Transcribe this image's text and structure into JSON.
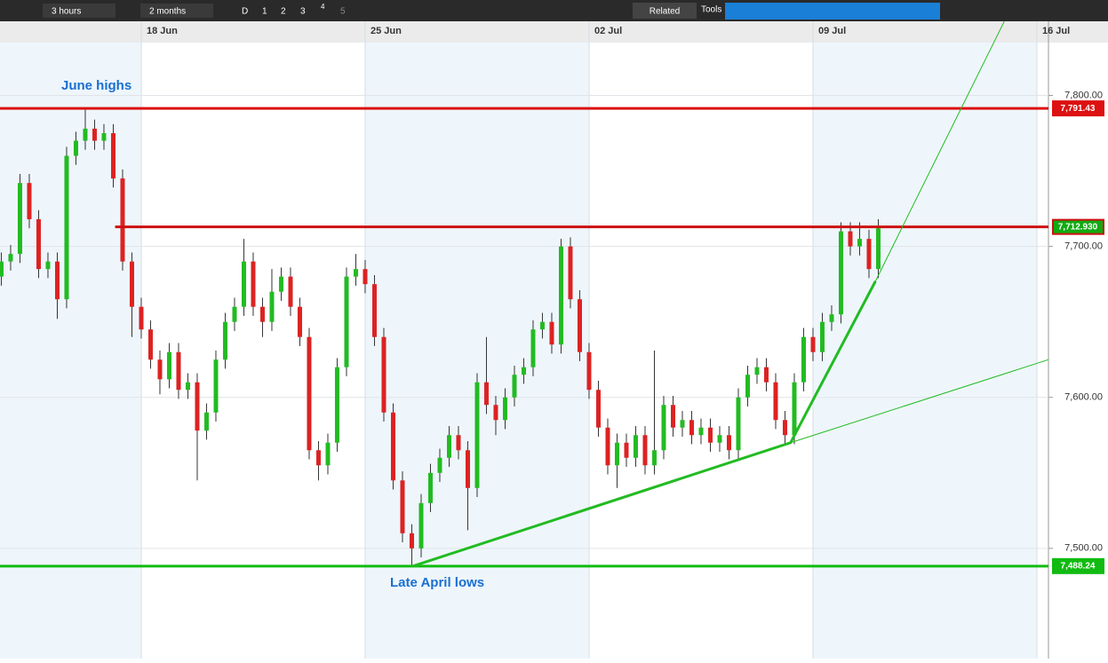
{
  "toolbar": {
    "interval": "3 hours",
    "range": "2 months",
    "buttons": [
      "D",
      "1",
      "2",
      "3",
      "4",
      "5"
    ],
    "related": "Related",
    "tools": "Tools"
  },
  "chart_data": {
    "type": "candlestick",
    "xlim": [
      -0.14,
      112.24
    ],
    "xticks": [
      {
        "value": 15,
        "label": "18 Jun"
      },
      {
        "value": 39,
        "label": "25 Jun"
      },
      {
        "value": 63,
        "label": "02 Jul"
      },
      {
        "value": 87,
        "label": "09 Jul"
      },
      {
        "value": 111,
        "label": "16 Jul"
      }
    ],
    "ylim": [
      7427,
      7835
    ],
    "yticks": [
      {
        "value": 7500,
        "label": "7,500.00"
      },
      {
        "value": 7600,
        "label": "7,600.00"
      },
      {
        "value": 7700,
        "label": "7,700.00"
      },
      {
        "value": 7800,
        "label": "7,800.00"
      }
    ],
    "up_color": "#22bb22",
    "down_color": "#dd2222",
    "open": [
      7680,
      7690,
      7695,
      7742,
      7718,
      7685,
      7690,
      7665,
      7760,
      7770,
      7778,
      7770,
      7775,
      7745,
      7690,
      7660,
      7645,
      7625,
      7612,
      7630,
      7605,
      7610,
      7578,
      7590,
      7625,
      7650,
      7660,
      7690,
      7660,
      7650,
      7670,
      7680,
      7660,
      7640,
      7565,
      7555,
      7570,
      7620,
      7680,
      7685,
      7675,
      7640,
      7590,
      7545,
      7510,
      7500,
      7530,
      7550,
      7560,
      7575,
      7565,
      7540,
      7610,
      7595,
      7585,
      7600,
      7615,
      7620,
      7645,
      7650,
      7635,
      7700,
      7665,
      7630,
      7605,
      7580,
      7555,
      7570,
      7560,
      7575,
      7555,
      7565,
      7595,
      7580,
      7585,
      7575,
      7580,
      7570,
      7575,
      7565,
      7600,
      7615,
      7620,
      7610,
      7585,
      7575,
      7610,
      7640,
      7630,
      7650,
      7655,
      7710,
      7700,
      7705,
      7685
    ],
    "high": [
      7696,
      7701,
      7748,
      7748,
      7724,
      7696,
      7696,
      7766,
      7776,
      7791,
      7784,
      7781,
      7781,
      7751,
      7696,
      7666,
      7651,
      7631,
      7636,
      7636,
      7616,
      7616,
      7596,
      7631,
      7656,
      7666,
      7705,
      7696,
      7666,
      7685,
      7686,
      7686,
      7666,
      7646,
      7571,
      7576,
      7626,
      7686,
      7695,
      7691,
      7681,
      7646,
      7596,
      7551,
      7516,
      7536,
      7556,
      7566,
      7581,
      7581,
      7571,
      7616,
      7640,
      7601,
      7606,
      7621,
      7626,
      7651,
      7656,
      7656,
      7705,
      7706,
      7671,
      7636,
      7611,
      7586,
      7576,
      7576,
      7581,
      7581,
      7631,
      7601,
      7601,
      7591,
      7591,
      7586,
      7586,
      7581,
      7581,
      7606,
      7621,
      7626,
      7626,
      7616,
      7591,
      7616,
      7646,
      7646,
      7656,
      7661,
      7716,
      7716,
      7716,
      7711,
      7718
    ],
    "low": [
      7674,
      7684,
      7689,
      7712,
      7679,
      7679,
      7652,
      7659,
      7754,
      7764,
      7764,
      7764,
      7739,
      7684,
      7640,
      7639,
      7619,
      7602,
      7606,
      7599,
      7599,
      7545,
      7572,
      7584,
      7619,
      7644,
      7654,
      7654,
      7640,
      7644,
      7664,
      7654,
      7634,
      7559,
      7545,
      7549,
      7564,
      7614,
      7674,
      7669,
      7634,
      7584,
      7539,
      7504,
      7488,
      7494,
      7524,
      7544,
      7554,
      7559,
      7512,
      7534,
      7589,
      7575,
      7579,
      7594,
      7609,
      7614,
      7639,
      7629,
      7629,
      7659,
      7624,
      7599,
      7574,
      7549,
      7540,
      7554,
      7554,
      7549,
      7549,
      7559,
      7574,
      7574,
      7569,
      7569,
      7564,
      7564,
      7559,
      7559,
      7594,
      7609,
      7604,
      7579,
      7569,
      7569,
      7604,
      7624,
      7624,
      7644,
      7649,
      7694,
      7694,
      7679,
      7679
    ],
    "close": [
      7690,
      7695,
      7742,
      7718,
      7685,
      7690,
      7665,
      7760,
      7770,
      7778,
      7770,
      7775,
      7745,
      7690,
      7660,
      7645,
      7625,
      7612,
      7630,
      7605,
      7610,
      7578,
      7590,
      7625,
      7650,
      7660,
      7690,
      7660,
      7650,
      7670,
      7680,
      7660,
      7640,
      7565,
      7555,
      7570,
      7620,
      7680,
      7685,
      7675,
      7640,
      7590,
      7545,
      7510,
      7500,
      7530,
      7550,
      7560,
      7575,
      7565,
      7540,
      7610,
      7595,
      7585,
      7600,
      7615,
      7620,
      7645,
      7650,
      7635,
      7700,
      7665,
      7630,
      7605,
      7580,
      7555,
      7570,
      7560,
      7575,
      7555,
      7565,
      7595,
      7580,
      7585,
      7575,
      7580,
      7570,
      7575,
      7565,
      7600,
      7615,
      7620,
      7610,
      7585,
      7575,
      7610,
      7640,
      7630,
      7650,
      7655,
      7710,
      7700,
      7705,
      7685,
      7712
    ],
    "levels": [
      {
        "value": 7791.43,
        "label": "7,791.43",
        "color": "#dd1111"
      },
      {
        "value": 7712.93,
        "label": "7,712.930",
        "color": "#cc1111",
        "start": 12.2,
        "label_color": "#11aa11"
      },
      {
        "value": 7488.24,
        "label": "7,488.24",
        "color": "#11bb11"
      }
    ],
    "trendlines": [
      {
        "x": [
          44,
          84.6,
          93.7
        ],
        "y": [
          7488,
          7570,
          7677
        ],
        "color": "#22bb22",
        "width": 3
      },
      {
        "x": [
          84.6,
          112.24
        ],
        "y": [
          7570,
          7625
        ],
        "color": "#22bb22",
        "width": 1
      },
      {
        "x": [
          93.7,
          107.5
        ],
        "y": [
          7677,
          7849
        ],
        "color": "#22bb22",
        "width": 1
      }
    ],
    "annotations": [
      "June highs",
      "Late April lows"
    ]
  }
}
